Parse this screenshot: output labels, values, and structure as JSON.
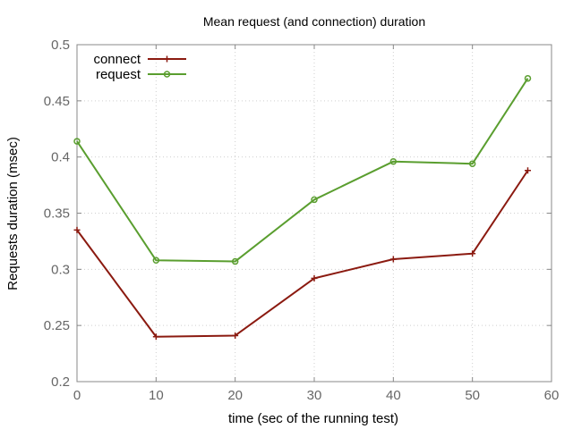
{
  "chart_data": {
    "type": "line",
    "title": "Mean request (and connection) duration",
    "xlabel": "time (sec of the running test)",
    "ylabel": "Requests duration (msec)",
    "xlim": [
      0,
      60
    ],
    "ylim": [
      0.2,
      0.5
    ],
    "x_ticks": [
      0,
      10,
      20,
      30,
      40,
      50,
      60
    ],
    "x_tick_labels": [
      "0",
      "10",
      "20",
      "30",
      "40",
      "50",
      "60"
    ],
    "y_ticks": [
      0.2,
      0.25,
      0.3,
      0.35,
      0.4,
      0.45,
      0.5
    ],
    "y_tick_labels": [
      "0.2",
      "0.25",
      "0.3",
      "0.35",
      "0.4",
      "0.45",
      "0.5"
    ],
    "grid": true,
    "legend_position": "top-left",
    "series": [
      {
        "name": "connect",
        "color": "#8b1a10",
        "marker": "plus",
        "x": [
          0,
          10,
          20,
          30,
          40,
          50,
          57
        ],
        "y": [
          0.335,
          0.24,
          0.241,
          0.292,
          0.309,
          0.314,
          0.388
        ]
      },
      {
        "name": "request",
        "color": "#5a9e2f",
        "marker": "circle",
        "x": [
          0,
          10,
          20,
          30,
          40,
          50,
          57
        ],
        "y": [
          0.414,
          0.308,
          0.307,
          0.362,
          0.396,
          0.394,
          0.47
        ]
      }
    ]
  }
}
